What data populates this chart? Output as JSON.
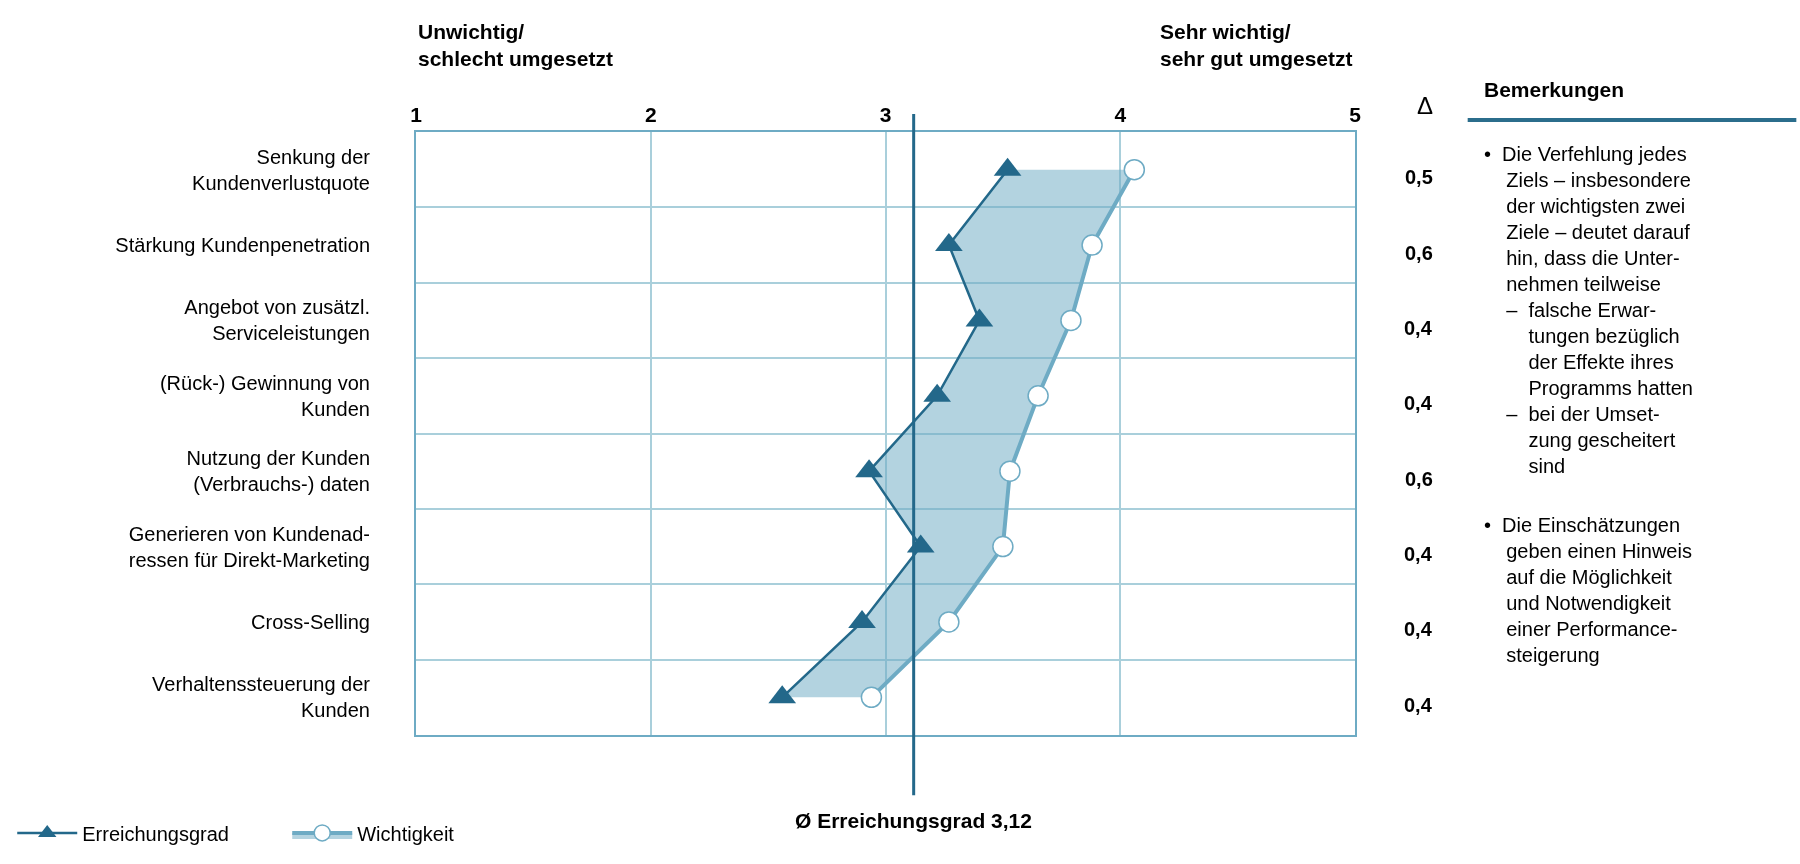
{
  "chart_data": {
    "type": "line",
    "orientation": "horizontal",
    "categories": [
      "Senkung der\nKundenverlustquote",
      "Stärkung Kundenpenetration",
      "Angebot von zusätzl.\nServiceleistungen",
      "(Rück-) Gewinnung von\nKunden",
      "Nutzung der Kunden\n(Verbrauchs-) daten",
      "Generieren von Kundenad-\nressen für Direkt-Marketing",
      "Cross-Selling",
      "Verhaltenssteuerung der\nKunden"
    ],
    "y2_categories": [
      "0,5",
      "0,6",
      "0,4",
      "0,4",
      "0,6",
      "0,4",
      "0,4",
      "0,4"
    ],
    "y2label": "Δ",
    "series": [
      {
        "name": "Erreichungsgrad",
        "marker": "triangle",
        "color": "#23688a",
        "values": [
          3.52,
          3.27,
          3.4,
          3.22,
          2.93,
          3.15,
          2.9,
          2.56
        ]
      },
      {
        "name": "Wichtigkeit",
        "type": "area",
        "marker": "circle",
        "color": "#6eabc4",
        "values": [
          4.06,
          3.88,
          3.79,
          3.65,
          3.53,
          3.5,
          3.27,
          2.94
        ]
      }
    ],
    "xlim": [
      1,
      5
    ],
    "xticks": [
      1,
      2,
      3,
      4,
      5
    ],
    "ref_lines": [
      {
        "axis": "x",
        "value": 3.12,
        "label": "Ø Erreichungsgrad 3,12",
        "color": "#23688a"
      }
    ],
    "grid": true,
    "legend": "bottom left",
    "annotations": [
      "Unwichtig/\nschlecht umgesetzt",
      "Sehr wichtig/\nsehr gut umgesetzt",
      "Bemerkungen",
      "•  Die Verfehlung jedes\n    Ziels – insbesondere\n    der wichtigsten zwei\n    Ziele – deutet darauf\n    hin, dass die Unter-\n    nehmen teilweise\n    –  falsche Erwar-\n        tungen bezüglich\n        der Effekte ihres\n        Programms hatten\n    –  bei der Umset-\n        zung gescheitert\n        sind",
      "•  Die Einschätzungen\n    geben einen Hinweis\n    auf die Möglichkeit\n    und Notwendigkeit\n    einer Performance-\n    steigerung"
    ]
  }
}
